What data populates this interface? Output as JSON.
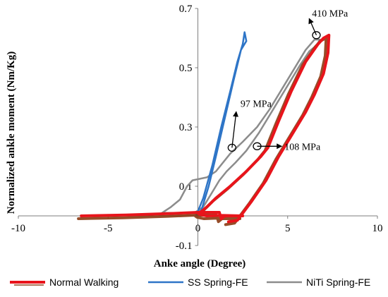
{
  "chart_data": {
    "type": "line",
    "title": "",
    "xlabel": "Anke angle (Degree)",
    "ylabel": "Normalized ankle moment (Nm/Kg)",
    "xlim": [
      -10,
      10
    ],
    "ylim": [
      -0.1,
      0.7
    ],
    "x_ticks": [
      "-10",
      "-5",
      "0",
      "5",
      "10"
    ],
    "y_ticks": [
      "-0.1",
      "0.1",
      "0.3",
      "0.5",
      "0.7"
    ],
    "legend_position": "bottom",
    "series": [
      {
        "name": "Normal Walking",
        "color": "#e8141b",
        "shadow_color": "#8b3a12",
        "points": [
          [
            -6.5,
            0.0
          ],
          [
            -4,
            0.003
          ],
          [
            -1.5,
            0.008
          ],
          [
            0,
            0.012
          ],
          [
            1.2,
            0.012
          ],
          [
            1.3,
            -0.01
          ],
          [
            1.5,
            0.0
          ],
          [
            2.5,
            0.0
          ],
          [
            1.2,
            0.002
          ],
          [
            0.5,
            0.0
          ],
          [
            0.1,
            0.005
          ],
          [
            0,
            0.01
          ],
          [
            0.2,
            0.015
          ],
          [
            0.5,
            0.03
          ],
          [
            1,
            0.06
          ],
          [
            1.8,
            0.1
          ],
          [
            2.7,
            0.15
          ],
          [
            3.5,
            0.2
          ],
          [
            3.9,
            0.23
          ],
          [
            4.5,
            0.32
          ],
          [
            5.2,
            0.42
          ],
          [
            6.0,
            0.52
          ],
          [
            6.7,
            0.58
          ],
          [
            7.0,
            0.6
          ],
          [
            7.3,
            0.61
          ],
          [
            7.25,
            0.55
          ],
          [
            7.0,
            0.48
          ],
          [
            6.5,
            0.41
          ],
          [
            6.0,
            0.35
          ],
          [
            5.3,
            0.28
          ],
          [
            4.5,
            0.2
          ],
          [
            3.8,
            0.12
          ],
          [
            3.0,
            0.05
          ],
          [
            2.2,
            -0.015
          ],
          [
            1.7,
            -0.02
          ]
        ]
      },
      {
        "name": "SS Spring-FE",
        "color": "#2e75c7",
        "points": [
          [
            -0.1,
            0.0
          ],
          [
            0.3,
            0.06
          ],
          [
            0.8,
            0.17
          ],
          [
            1.3,
            0.3
          ],
          [
            1.8,
            0.42
          ],
          [
            2.2,
            0.52
          ],
          [
            2.5,
            0.58
          ],
          [
            2.6,
            0.62
          ],
          [
            2.7,
            0.59
          ],
          [
            2.5,
            0.57
          ],
          [
            2.4,
            0.56
          ],
          [
            2.0,
            0.46
          ],
          [
            1.5,
            0.33
          ],
          [
            1.0,
            0.2
          ],
          [
            0.6,
            0.1
          ],
          [
            0.2,
            0.02
          ],
          [
            -0.1,
            0.0
          ]
        ]
      },
      {
        "name": "NiTi Spring-FE",
        "color": "#8c8c8c",
        "points": [
          [
            -2.0,
            0.01
          ],
          [
            -1.5,
            0.03
          ],
          [
            -1.0,
            0.055
          ],
          [
            -0.6,
            0.1
          ],
          [
            -0.3,
            0.12
          ],
          [
            0.5,
            0.13
          ],
          [
            1.0,
            0.15
          ],
          [
            1.8,
            0.21
          ],
          [
            2.5,
            0.25
          ],
          [
            3.3,
            0.3
          ],
          [
            4.0,
            0.36
          ],
          [
            4.8,
            0.44
          ],
          [
            5.5,
            0.51
          ],
          [
            6.0,
            0.56
          ],
          [
            6.5,
            0.595
          ],
          [
            6.8,
            0.595
          ],
          [
            6.6,
            0.575
          ],
          [
            6.2,
            0.555
          ],
          [
            5.7,
            0.51
          ],
          [
            5.0,
            0.44
          ],
          [
            4.2,
            0.36
          ],
          [
            3.4,
            0.28
          ],
          [
            2.7,
            0.22
          ],
          [
            2.1,
            0.18
          ],
          [
            1.6,
            0.15
          ],
          [
            1.2,
            0.12
          ],
          [
            0.8,
            0.08
          ],
          [
            0.3,
            0.03
          ],
          [
            -0.2,
            0.01
          ],
          [
            -1.0,
            0.01
          ],
          [
            -2.0,
            0.01
          ]
        ]
      }
    ],
    "annotations": [
      {
        "label": "410 MPa",
        "point": [
          6.6,
          0.61
        ],
        "text_pos": [
          7.3,
          0.68
        ]
      },
      {
        "label": "97 MPa",
        "point": [
          1.9,
          0.23
        ],
        "text_pos": [
          3.0,
          0.38
        ]
      },
      {
        "label": "108 MPa",
        "point": [
          3.3,
          0.235
        ],
        "text_pos": [
          4.9,
          0.235
        ]
      }
    ]
  }
}
